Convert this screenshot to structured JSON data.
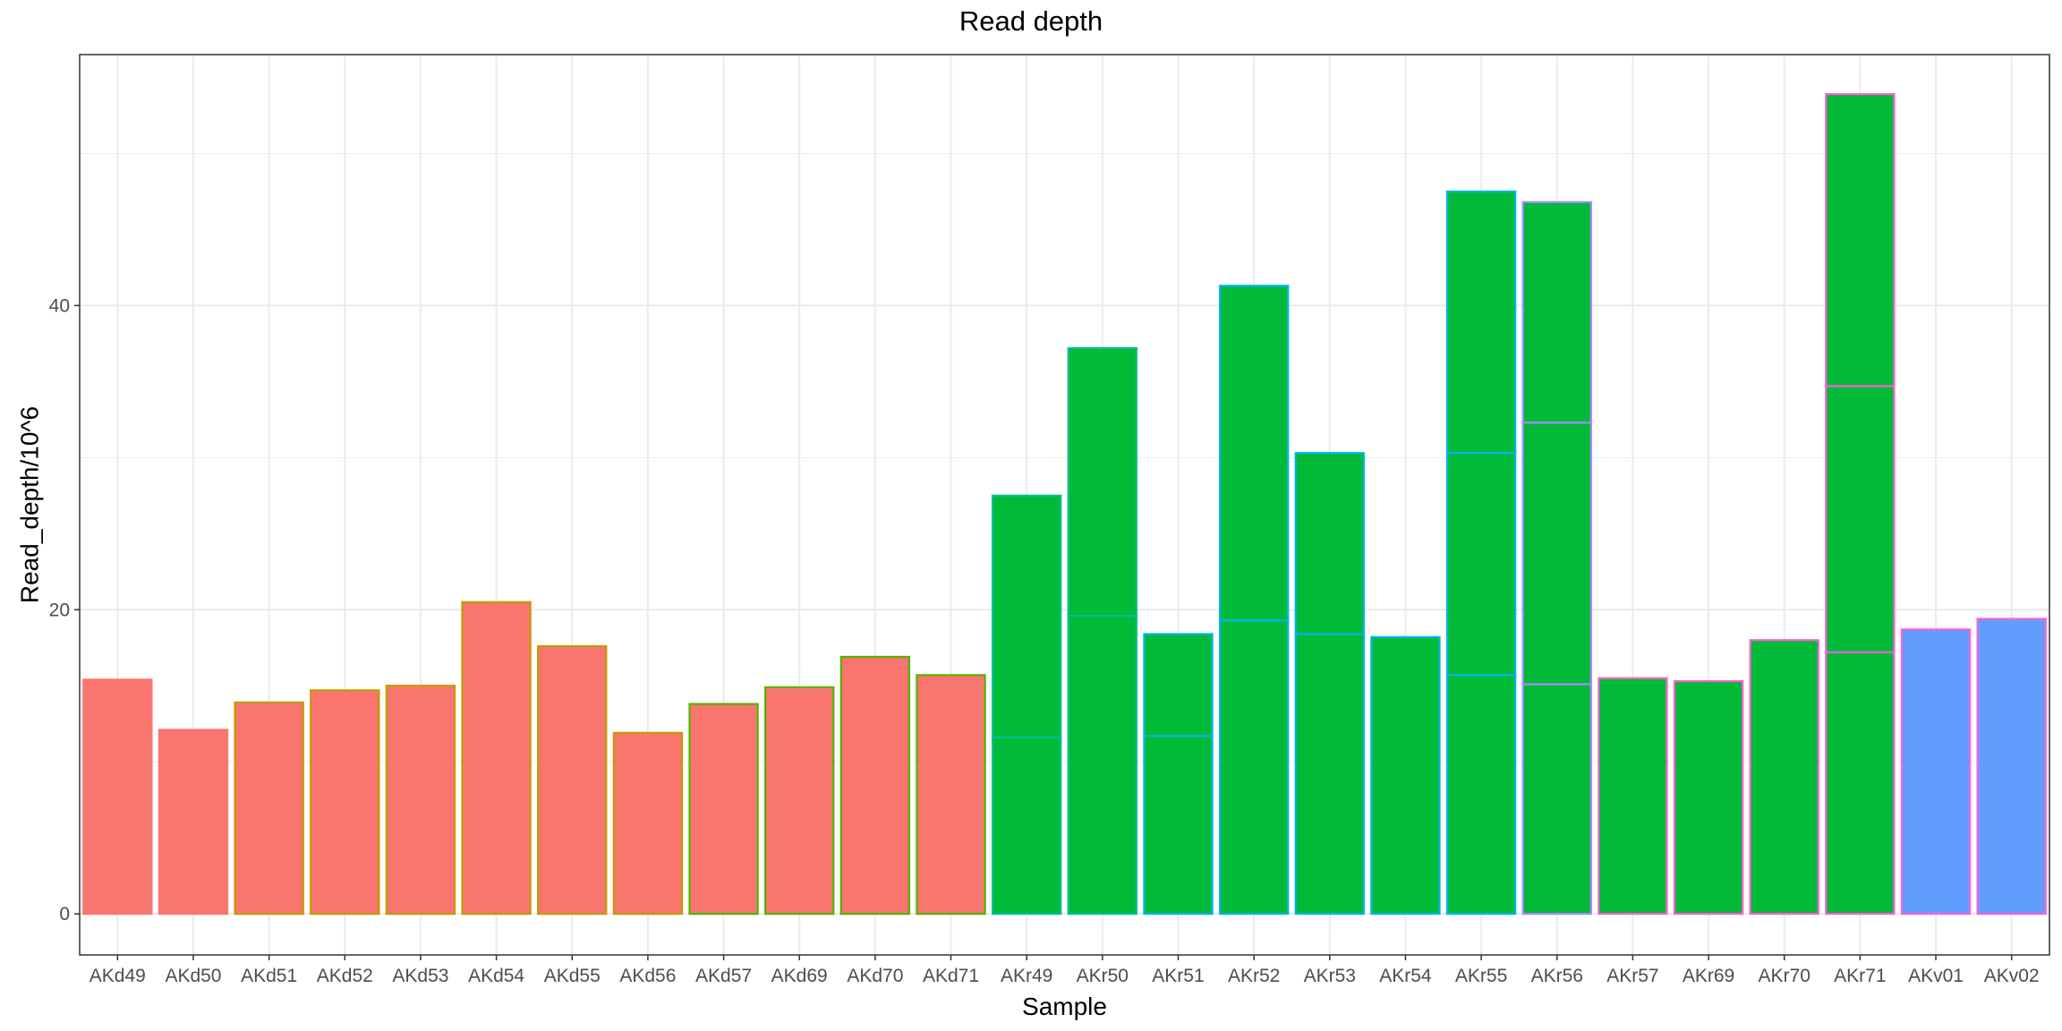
{
  "chart_data": {
    "type": "bar",
    "stacked": true,
    "title": "Read depth",
    "xlabel": "Sample",
    "ylabel": "Read_depth/10^6",
    "ylim": [
      -2.7,
      56.5
    ],
    "yticks": [
      0,
      20,
      40
    ],
    "grid": true,
    "legend": "none",
    "categories": [
      "AKd49",
      "AKd50",
      "AKd51",
      "AKd52",
      "AKd53",
      "AKd54",
      "AKd55",
      "AKd56",
      "AKd57",
      "AKd69",
      "AKd70",
      "AKd71",
      "AKr49",
      "AKr50",
      "AKr51",
      "AKr52",
      "AKr53",
      "AKr54",
      "AKr55",
      "AKr56",
      "AKr57",
      "AKr69",
      "AKr70",
      "AKr71",
      "AKv01",
      "AKv02"
    ],
    "fill_group": [
      "d",
      "d",
      "d",
      "d",
      "d",
      "d",
      "d",
      "d",
      "d",
      "d",
      "d",
      "d",
      "r",
      "r",
      "r",
      "r",
      "r",
      "r",
      "r",
      "r",
      "r",
      "r",
      "r",
      "r",
      "v",
      "v"
    ],
    "fill_colors": {
      "d": "#F8766D",
      "r": "#00BA38",
      "v": "#619CFF"
    },
    "outline_colors": [
      "#F8766D",
      "#F8766D",
      "#C49A00",
      "#C49A00",
      "#C49A00",
      "#C49A00",
      "#C49A00",
      "#C49A00",
      "#53B400",
      "#53B400",
      "#53B400",
      "#53B400",
      "#00C094",
      "#00C094",
      "#00B6EB",
      "#00B6EB",
      "#00B6EB",
      "#00B6EB",
      "#00B6EB",
      "#A58AFF",
      "#FB61D7",
      "#FB61D7",
      "#FB61D7",
      "#FB61D7",
      "#FB61D7",
      "#FB61D7"
    ],
    "segments": [
      [
        15.4
      ],
      [
        12.1
      ],
      [
        13.9
      ],
      [
        14.7
      ],
      [
        15.0
      ],
      [
        20.5
      ],
      [
        17.6
      ],
      [
        11.9
      ],
      [
        13.8
      ],
      [
        14.9
      ],
      [
        16.9
      ],
      [
        15.7
      ],
      [
        11.6,
        15.9
      ],
      [
        19.6,
        17.6
      ],
      [
        11.7,
        6.7
      ],
      [
        19.3,
        22.0
      ],
      [
        18.4,
        11.9
      ],
      [
        18.2
      ],
      [
        15.7,
        14.6,
        17.2
      ],
      [
        15.1,
        17.2,
        14.5
      ],
      [
        15.5
      ],
      [
        15.3
      ],
      [
        18.0
      ],
      [
        17.2,
        17.5,
        19.2
      ],
      [
        18.7
      ],
      [
        19.4
      ]
    ]
  }
}
